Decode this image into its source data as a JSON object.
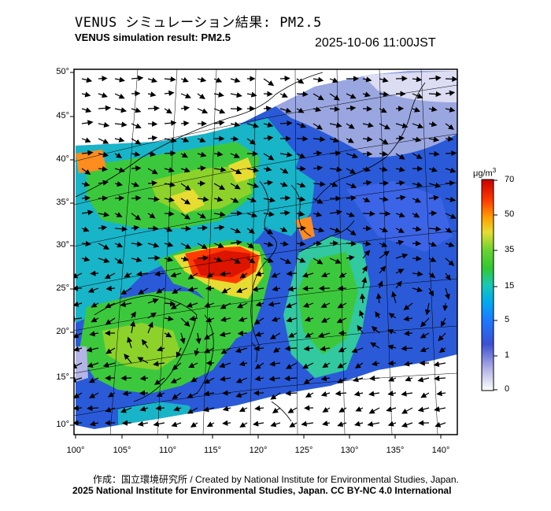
{
  "header": {
    "title_jp": "VENUS シミュレーション結果: PM2.5",
    "title_en": "VENUS simulation result: PM2.5",
    "timestamp": "2025-10-06 11:00JST"
  },
  "map": {
    "lat_ticks": [
      "50°",
      "45°",
      "40°",
      "35°",
      "30°",
      "25°",
      "20°",
      "15°",
      "10°"
    ],
    "lon_ticks": [
      "100°",
      "105°",
      "110°",
      "115°",
      "120°",
      "125°",
      "130°",
      "135°",
      "140°"
    ],
    "lat_range": [
      9,
      51
    ],
    "lon_range": [
      100,
      142
    ],
    "features": [
      "PM2.5 concentration field",
      "wind vectors",
      "coastlines",
      "graticule"
    ]
  },
  "colorbar": {
    "unit": "μg/m",
    "unit_sup": "3",
    "labels": [
      "70",
      "50",
      "35",
      "15",
      "5",
      "1",
      "0"
    ],
    "colors": [
      "#c80000",
      "#ff3c00",
      "#ffa000",
      "#e6dc32",
      "#64d232",
      "#19c850",
      "#00c8c8",
      "#1e8cff",
      "#2850dc",
      "#3c3cc8",
      "#8c8cd2",
      "#e6e6f5"
    ]
  },
  "footer": {
    "credit_jp": "作成：国立環境研究所 / Created by National Institute for Environmental Studies, Japan.",
    "copyright": "2025 National Institute for Environmental Studies, Japan. CC BY-NC 4.0 International"
  }
}
